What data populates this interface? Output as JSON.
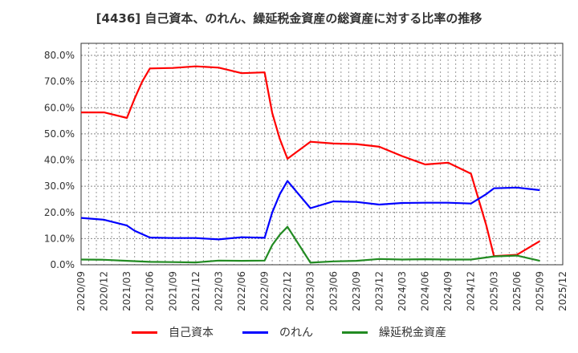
{
  "chart_data": {
    "type": "line",
    "title": "[4436]  自己資本、のれん、繰延税金資産の総資産に対する比率の推移",
    "xlabel": "",
    "ylabel": "",
    "ylim": [
      0,
      85
    ],
    "yticks": [
      "0.0%",
      "10.0%",
      "20.0%",
      "30.0%",
      "40.0%",
      "50.0%",
      "60.0%",
      "70.0%",
      "80.0%"
    ],
    "x_ticks": [
      "2020/09",
      "2020/12",
      "2021/03",
      "2021/06",
      "2021/09",
      "2021/12",
      "2022/03",
      "2022/06",
      "2022/09",
      "2022/12",
      "2023/03",
      "2023/06",
      "2023/09",
      "2023/12",
      "2024/03",
      "2024/06",
      "2024/09",
      "2024/12",
      "2025/03",
      "2025/06",
      "2025/09",
      "2025/12"
    ],
    "grid": true,
    "legend_position": "bottom",
    "x_unit": "month index from 2020/09",
    "series": [
      {
        "name": "自己資本",
        "color": "#ff0000",
        "points": [
          [
            0,
            58.2
          ],
          [
            3,
            58.2
          ],
          [
            6,
            56.1
          ],
          [
            7,
            63.5
          ],
          [
            8,
            70.0
          ],
          [
            9,
            75.0
          ],
          [
            12,
            75.2
          ],
          [
            15,
            75.8
          ],
          [
            18,
            75.3
          ],
          [
            21,
            73.2
          ],
          [
            24,
            73.5
          ],
          [
            25,
            58.0
          ],
          [
            26,
            48.0
          ],
          [
            27,
            40.5
          ],
          [
            30,
            47.0
          ],
          [
            33,
            46.3
          ],
          [
            36,
            46.1
          ],
          [
            39,
            45.1
          ],
          [
            42,
            41.5
          ],
          [
            45,
            38.3
          ],
          [
            48,
            39.0
          ],
          [
            51,
            34.8
          ],
          [
            53,
            15.0
          ],
          [
            54,
            3.3
          ],
          [
            57,
            3.8
          ],
          [
            60,
            9.0
          ]
        ]
      },
      {
        "name": "のれん",
        "color": "#0000ff",
        "points": [
          [
            0,
            17.9
          ],
          [
            3,
            17.2
          ],
          [
            6,
            15.0
          ],
          [
            7,
            13.0
          ],
          [
            9,
            10.4
          ],
          [
            12,
            10.2
          ],
          [
            15,
            10.2
          ],
          [
            18,
            9.7
          ],
          [
            21,
            10.5
          ],
          [
            24,
            10.3
          ],
          [
            25,
            20.0
          ],
          [
            26,
            27.0
          ],
          [
            27,
            32.0
          ],
          [
            30,
            21.6
          ],
          [
            33,
            24.2
          ],
          [
            36,
            24.0
          ],
          [
            39,
            23.0
          ],
          [
            42,
            23.6
          ],
          [
            45,
            23.7
          ],
          [
            48,
            23.7
          ],
          [
            51,
            23.4
          ],
          [
            53,
            27.0
          ],
          [
            54,
            29.2
          ],
          [
            57,
            29.5
          ],
          [
            60,
            28.5
          ]
        ]
      },
      {
        "name": "繰延税金資産",
        "color": "#228b22",
        "points": [
          [
            0,
            2.0
          ],
          [
            3,
            1.9
          ],
          [
            6,
            1.5
          ],
          [
            9,
            1.1
          ],
          [
            12,
            1.0
          ],
          [
            15,
            0.9
          ],
          [
            18,
            1.6
          ],
          [
            21,
            1.5
          ],
          [
            24,
            1.6
          ],
          [
            25,
            7.5
          ],
          [
            26,
            11.5
          ],
          [
            27,
            14.5
          ],
          [
            30,
            0.8
          ],
          [
            33,
            1.3
          ],
          [
            36,
            1.5
          ],
          [
            39,
            2.2
          ],
          [
            42,
            2.0
          ],
          [
            45,
            2.1
          ],
          [
            48,
            2.0
          ],
          [
            51,
            2.0
          ],
          [
            54,
            3.2
          ],
          [
            57,
            3.5
          ],
          [
            60,
            1.5
          ]
        ]
      }
    ]
  },
  "title": "[4436]  自己資本、のれん、繰延税金資産の総資産に対する比率の推移",
  "legend": [
    {
      "label": "自己資本",
      "color": "#ff0000"
    },
    {
      "label": "のれん",
      "color": "#0000ff"
    },
    {
      "label": "繰延税金資産",
      "color": "#228b22"
    }
  ]
}
